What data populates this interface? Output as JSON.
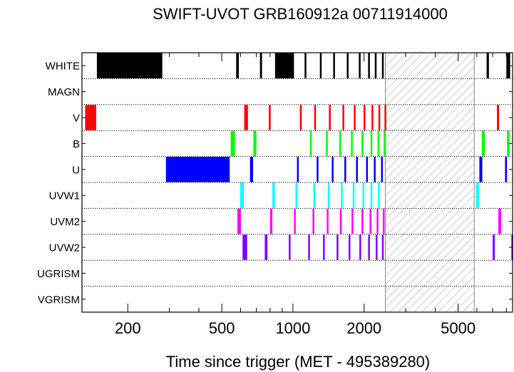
{
  "chart_data": {
    "type": "timeline",
    "title": "SWIFT-UVOT GRB160912a 00711914000",
    "xlabel": "Time since trigger (MET - 495389280)",
    "xscale": "log",
    "xlim": [
      128,
      8500
    ],
    "xticks": [
      {
        "value": 200,
        "label": "200"
      },
      {
        "value": 500,
        "label": "500"
      },
      {
        "value": 1000,
        "label": "1000"
      },
      {
        "value": 2000,
        "label": "2000"
      },
      {
        "value": 5000,
        "label": "5000"
      }
    ],
    "minor_ticks": [
      300,
      400,
      600,
      700,
      800,
      900,
      3000,
      4000,
      6000,
      7000,
      8000
    ],
    "gap": {
      "start": 2460,
      "end": 5850,
      "label": "no coverage (hatched)"
    },
    "filters": [
      {
        "name": "WHITE",
        "color": "#000000",
        "exposures": [
          [
            148,
            280
          ],
          [
            575,
            590
          ],
          [
            725,
            740
          ],
          [
            840,
            1010
          ],
          [
            1120,
            1135
          ],
          [
            1300,
            1315
          ],
          [
            1480,
            1495
          ],
          [
            1690,
            1705
          ],
          [
            1900,
            1915
          ],
          [
            2080,
            2095
          ],
          [
            2220,
            2235
          ],
          [
            2380,
            2395
          ],
          [
            6600,
            6750
          ],
          [
            8000,
            8300
          ]
        ]
      },
      {
        "name": "MAGN",
        "color": "#000000",
        "exposures": []
      },
      {
        "name": "V",
        "color": "#ff0000",
        "exposures": [
          [
            132,
            147
          ],
          [
            622,
            645
          ],
          [
            790,
            805
          ],
          [
            1070,
            1085
          ],
          [
            1230,
            1245
          ],
          [
            1420,
            1435
          ],
          [
            1620,
            1635
          ],
          [
            1810,
            1825
          ],
          [
            1990,
            2005
          ],
          [
            2150,
            2165
          ],
          [
            2300,
            2315
          ],
          [
            2440,
            2455
          ],
          [
            7300,
            7450
          ]
        ]
      },
      {
        "name": "B",
        "color": "#00ff00",
        "exposures": [
          [
            545,
            568
          ],
          [
            680,
            700
          ],
          [
            1180,
            1195
          ],
          [
            1380,
            1395
          ],
          [
            1570,
            1585
          ],
          [
            1760,
            1775
          ],
          [
            1950,
            1965
          ],
          [
            2130,
            2145
          ],
          [
            2280,
            2295
          ],
          [
            2420,
            2435
          ],
          [
            6300,
            6480
          ],
          [
            8050,
            8250
          ]
        ]
      },
      {
        "name": "U",
        "color": "#0000ff",
        "exposures": [
          [
            290,
            540
          ],
          [
            658,
            678
          ],
          [
            1040,
            1055
          ],
          [
            1260,
            1275
          ],
          [
            1460,
            1475
          ],
          [
            1650,
            1665
          ],
          [
            1850,
            1865
          ],
          [
            2040,
            2055
          ],
          [
            2200,
            2215
          ],
          [
            2360,
            2375
          ],
          [
            6150,
            6330
          ],
          [
            7900,
            8050
          ]
        ]
      },
      {
        "name": "UVW1",
        "color": "#00ffff",
        "exposures": [
          [
            598,
            620
          ],
          [
            818,
            838
          ],
          [
            1025,
            1040
          ],
          [
            1220,
            1235
          ],
          [
            1405,
            1420
          ],
          [
            1595,
            1610
          ],
          [
            1790,
            1805
          ],
          [
            1970,
            1985
          ],
          [
            2130,
            2145
          ],
          [
            2290,
            2305
          ],
          [
            5950,
            6120
          ]
        ]
      },
      {
        "name": "UVM2",
        "color": "#ff00ff",
        "exposures": [
          [
            582,
            602
          ],
          [
            800,
            818
          ],
          [
            1010,
            1025
          ],
          [
            1210,
            1225
          ],
          [
            1390,
            1405
          ],
          [
            1580,
            1595
          ],
          [
            1770,
            1785
          ],
          [
            1950,
            1965
          ],
          [
            2110,
            2125
          ],
          [
            2260,
            2275
          ],
          [
            2400,
            2415
          ],
          [
            7400,
            7600
          ]
        ]
      },
      {
        "name": "UVW2",
        "color": "#8000ff",
        "exposures": [
          [
            612,
            640
          ],
          [
            760,
            780
          ],
          [
            960,
            975
          ],
          [
            1160,
            1175
          ],
          [
            1340,
            1355
          ],
          [
            1530,
            1545
          ],
          [
            1720,
            1735
          ],
          [
            1910,
            1925
          ],
          [
            2080,
            2095
          ],
          [
            2240,
            2255
          ],
          [
            2380,
            2395
          ],
          [
            7000,
            7150
          ],
          [
            8400,
            8500
          ]
        ]
      },
      {
        "name": "UGRISM",
        "color": "#000000",
        "exposures": []
      },
      {
        "name": "VGRISM",
        "color": "#000000",
        "exposures": []
      }
    ]
  }
}
